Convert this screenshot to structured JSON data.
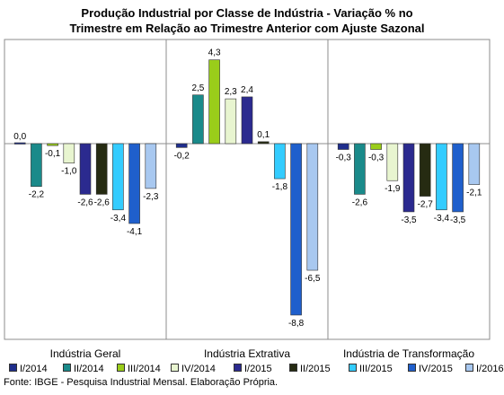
{
  "chart_data": {
    "type": "bar",
    "title_line1": "Produção Industrial por Classe de Indústria - Variação % no",
    "title_line2": "Trimestre em Relação ao Trimestre Anterior com Ajuste Sazonal",
    "categories": [
      "Indústria Geral",
      "Indústria Extrativa",
      "Indústria de Transformação"
    ],
    "series": [
      {
        "name": "I/2014",
        "color": "#1f2e8c",
        "values": [
          0.0,
          -0.2,
          -0.3
        ],
        "labels": [
          "0,0",
          "-0,2",
          "-0,3"
        ]
      },
      {
        "name": "II/2014",
        "color": "#1a8a8a",
        "values": [
          -2.2,
          2.5,
          -2.6
        ],
        "labels": [
          "-2,2",
          "2,5",
          "-2,6"
        ]
      },
      {
        "name": "III/2014",
        "color": "#9acd1a",
        "values": [
          -0.1,
          4.3,
          -0.3
        ],
        "labels": [
          "-0,1",
          "4,3",
          "-0,3"
        ]
      },
      {
        "name": "IV/2014",
        "color": "#e8f5d0",
        "values": [
          -1.0,
          2.3,
          -1.9
        ],
        "labels": [
          "-1,0",
          "2,3",
          "-1,9"
        ]
      },
      {
        "name": "I/2015",
        "color": "#2b2a8f",
        "values": [
          -2.6,
          2.4,
          -3.5
        ],
        "labels": [
          "-2,6",
          "2,4",
          "-3,5"
        ]
      },
      {
        "name": "II/2015",
        "color": "#262b12",
        "values": [
          -2.6,
          0.1,
          -2.7
        ],
        "labels": [
          "-2,6",
          "0,1",
          "-2,7"
        ]
      },
      {
        "name": "III/2015",
        "color": "#33ccff",
        "values": [
          -3.4,
          -1.8,
          -3.4
        ],
        "labels": [
          "-3,4",
          "-1,8",
          "-3,4"
        ]
      },
      {
        "name": "IV/2015",
        "color": "#1f5fcc",
        "values": [
          -4.1,
          -8.8,
          -3.5
        ],
        "labels": [
          "-4,1",
          "-8,8",
          "-3,5"
        ]
      },
      {
        "name": "I/2016",
        "color": "#a8c8f0",
        "values": [
          -2.3,
          -6.5,
          -2.1
        ],
        "labels": [
          "-2,3",
          "-6,5",
          "-2,1"
        ]
      }
    ],
    "ylim": [
      -10,
      5.5
    ],
    "grid": false,
    "legend": "bottom"
  },
  "footer": "Fonte: IBGE - Pesquisa Industrial Mensal. Elaboração Própria."
}
